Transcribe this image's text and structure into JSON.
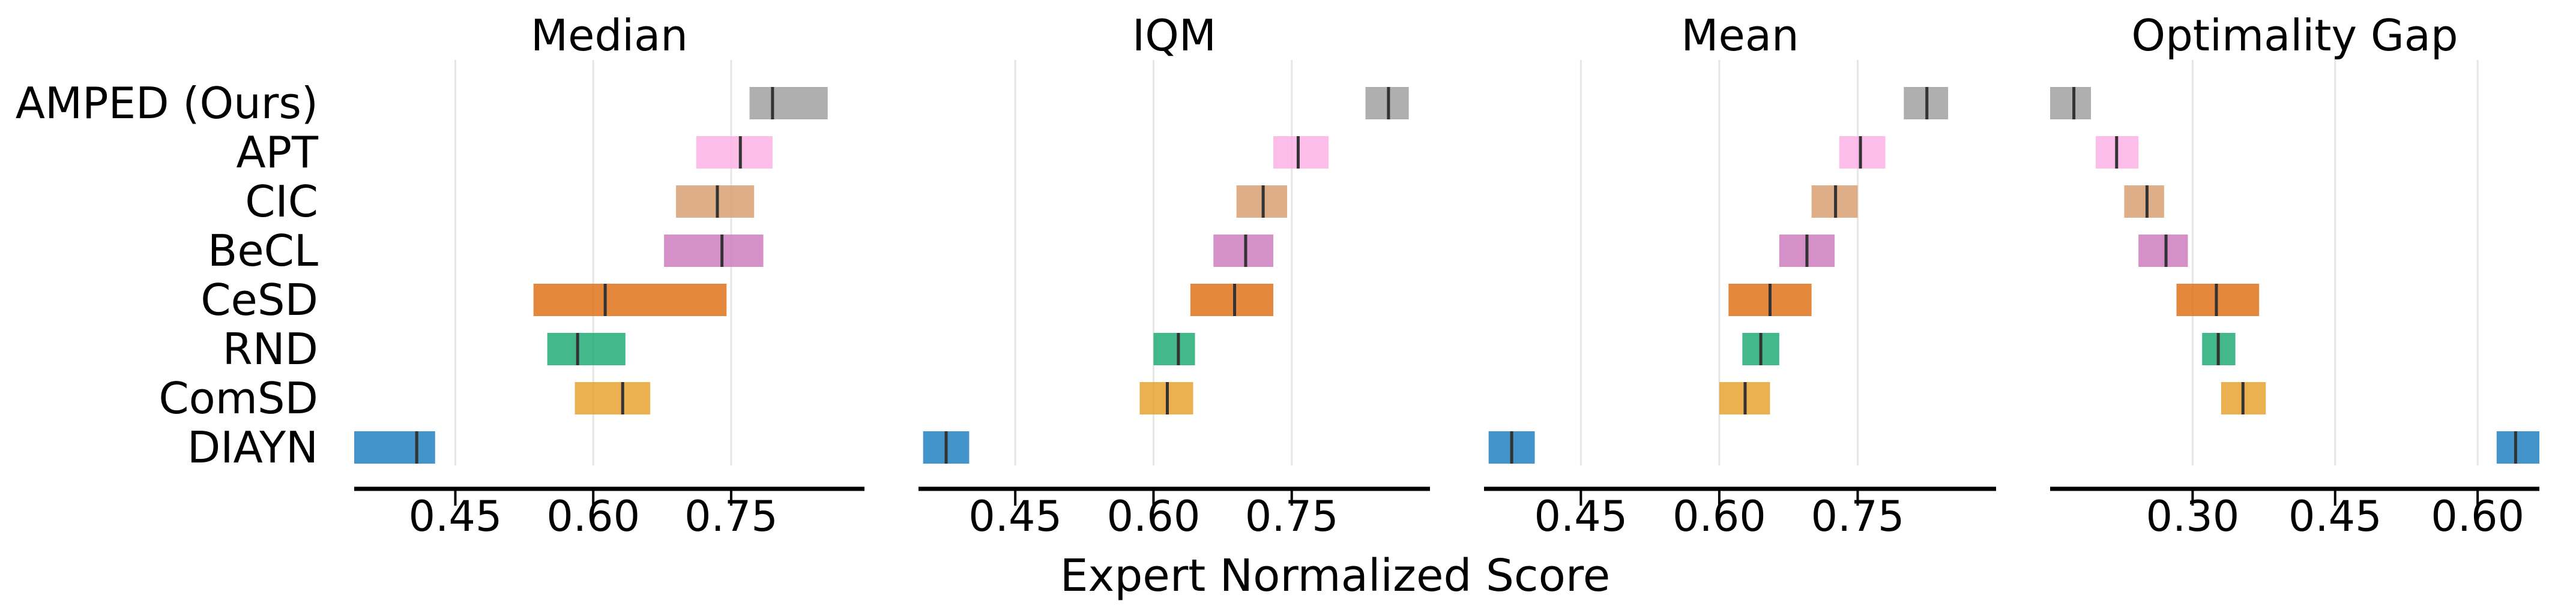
{
  "chart_data": {
    "type": "interval",
    "xlabel": "Expert Normalized Score",
    "algorithms": [
      "AMPED (Ours)",
      "APT",
      "CIC",
      "BeCL",
      "CeSD",
      "RND",
      "ComSD",
      "DIAYN"
    ],
    "colors": {
      "AMPED (Ours)": "#9e9e9e",
      "APT": "#fbafe4",
      "CIC": "#d69c6c",
      "BeCL": "#cc78bc",
      "CeSD": "#de6e14",
      "RND": "#1aa870",
      "ComSD": "#e6a02a",
      "DIAYN": "#1a7dbe"
    },
    "panels": [
      {
        "title": "Median",
        "xlim": [
          0.34,
          0.895
        ],
        "ticks": [
          0.45,
          0.6,
          0.75
        ],
        "tick_labels": [
          "0.45",
          "0.60",
          "0.75"
        ],
        "data": {
          "AMPED (Ours)": {
            "low": 0.77,
            "point": 0.795,
            "high": 0.855
          },
          "APT": {
            "low": 0.712,
            "point": 0.76,
            "high": 0.795
          },
          "CIC": {
            "low": 0.69,
            "point": 0.735,
            "high": 0.775
          },
          "BeCL": {
            "low": 0.677,
            "point": 0.74,
            "high": 0.785
          },
          "CeSD": {
            "low": 0.535,
            "point": 0.613,
            "high": 0.745
          },
          "RND": {
            "low": 0.55,
            "point": 0.583,
            "high": 0.635
          },
          "ComSD": {
            "low": 0.58,
            "point": 0.632,
            "high": 0.662
          },
          "DIAYN": {
            "low": 0.34,
            "point": 0.408,
            "high": 0.428
          }
        }
      },
      {
        "title": "IQM",
        "xlim": [
          0.345,
          0.9
        ],
        "ticks": [
          0.45,
          0.6,
          0.75
        ],
        "tick_labels": [
          "0.45",
          "0.60",
          "0.75"
        ],
        "data": {
          "AMPED (Ours)": {
            "low": 0.83,
            "point": 0.855,
            "high": 0.877
          },
          "APT": {
            "low": 0.73,
            "point": 0.757,
            "high": 0.79
          },
          "CIC": {
            "low": 0.69,
            "point": 0.719,
            "high": 0.745
          },
          "BeCL": {
            "low": 0.665,
            "point": 0.7,
            "high": 0.73
          },
          "CeSD": {
            "low": 0.64,
            "point": 0.688,
            "high": 0.73
          },
          "RND": {
            "low": 0.6,
            "point": 0.627,
            "high": 0.645
          },
          "ComSD": {
            "low": 0.585,
            "point": 0.615,
            "high": 0.643
          },
          "DIAYN": {
            "low": 0.35,
            "point": 0.375,
            "high": 0.4
          }
        }
      },
      {
        "title": "Mean",
        "xlim": [
          0.345,
          0.9
        ],
        "ticks": [
          0.45,
          0.6,
          0.75
        ],
        "tick_labels": [
          "0.45",
          "0.60",
          "0.75"
        ],
        "data": {
          "AMPED (Ours)": {
            "low": 0.8,
            "point": 0.825,
            "high": 0.848
          },
          "APT": {
            "low": 0.73,
            "point": 0.753,
            "high": 0.78
          },
          "CIC": {
            "low": 0.7,
            "point": 0.726,
            "high": 0.75
          },
          "BeCL": {
            "low": 0.665,
            "point": 0.695,
            "high": 0.725
          },
          "CeSD": {
            "low": 0.61,
            "point": 0.655,
            "high": 0.7
          },
          "RND": {
            "low": 0.625,
            "point": 0.645,
            "high": 0.665
          },
          "ComSD": {
            "low": 0.6,
            "point": 0.628,
            "high": 0.655
          },
          "DIAYN": {
            "low": 0.35,
            "point": 0.375,
            "high": 0.4
          }
        }
      },
      {
        "title": "Optimality Gap",
        "xlim": [
          0.15,
          0.665
        ],
        "ticks": [
          0.3,
          0.45,
          0.6
        ],
        "tick_labels": [
          "0.30",
          "0.45",
          "0.60"
        ],
        "data": {
          "AMPED (Ours)": {
            "low": 0.15,
            "point": 0.175,
            "high": 0.193
          },
          "APT": {
            "low": 0.198,
            "point": 0.22,
            "high": 0.243
          },
          "CIC": {
            "low": 0.228,
            "point": 0.252,
            "high": 0.27
          },
          "BeCL": {
            "low": 0.243,
            "point": 0.272,
            "high": 0.295
          },
          "CeSD": {
            "low": 0.283,
            "point": 0.325,
            "high": 0.37
          },
          "RND": {
            "low": 0.31,
            "point": 0.327,
            "high": 0.345
          },
          "ComSD": {
            "low": 0.33,
            "point": 0.353,
            "high": 0.377
          },
          "DIAYN": {
            "low": 0.62,
            "point": 0.64,
            "high": 0.665
          }
        }
      }
    ]
  }
}
